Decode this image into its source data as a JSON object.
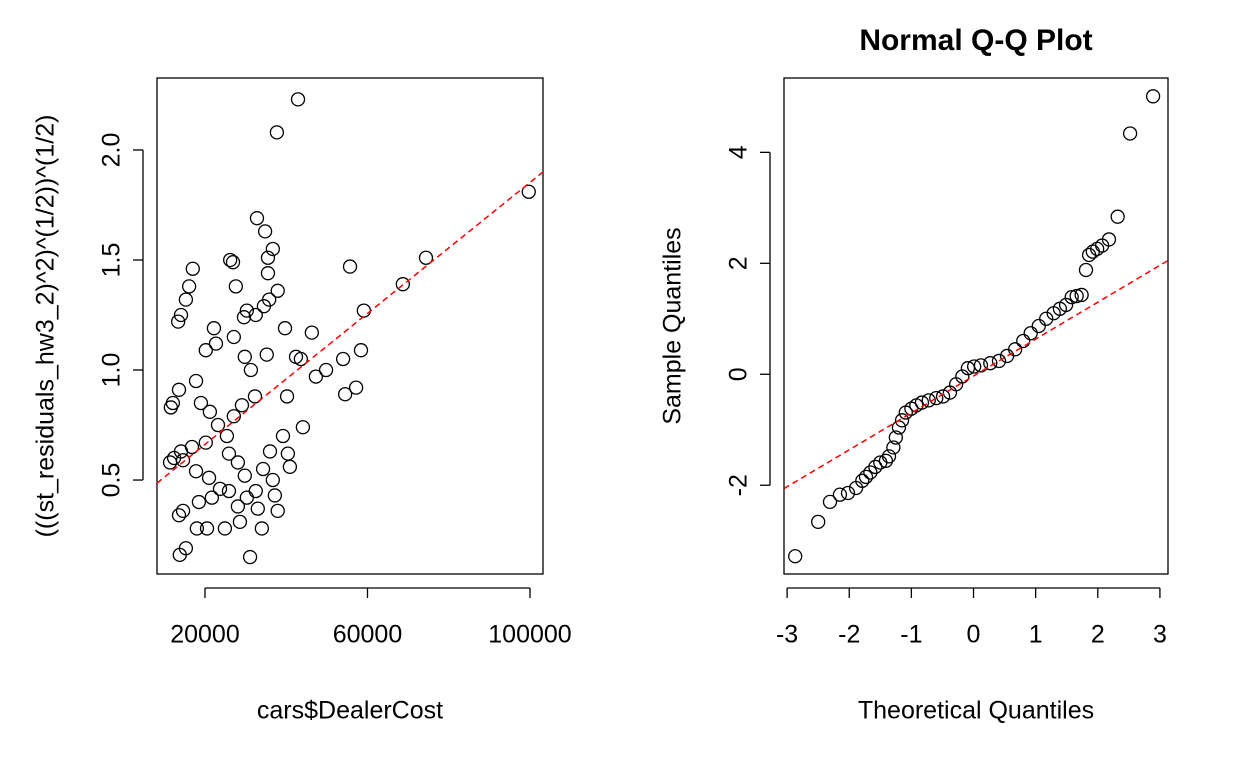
{
  "chart_data": [
    {
      "type": "scatter",
      "x_label": "cars$DealerCost",
      "y_label": "(((st_residuals_hw3_2)^2)^(1/2))^(1/2)",
      "xlim": [
        8190,
        103200
      ],
      "ylim": [
        0.073,
        2.327
      ],
      "xticks": [
        20000,
        60000,
        100000
      ],
      "yticks": [
        0.5,
        {
          "value": 1.0,
          "label": "1.0"
        },
        1.5,
        {
          "value": 2.0,
          "label": "2.0"
        }
      ],
      "point_color": "#000000",
      "reference_line": {
        "color": "#ff0000",
        "x": [
          8190,
          103200
        ],
        "y": [
          0.486,
          1.9
        ]
      },
      "x": [
        42900,
        37700,
        99700,
        74400,
        68700,
        55700,
        59100,
        58400,
        57200,
        54500,
        54000,
        49800,
        47300,
        46300,
        43600,
        42400,
        40200,
        39700,
        44100,
        40900,
        40400,
        39200,
        37900,
        36700,
        34800,
        32800,
        35500,
        35500,
        35800,
        34500,
        32500,
        30300,
        29600,
        26900,
        26200,
        27600,
        27100,
        29800,
        31300,
        35200,
        32300,
        29100,
        27100,
        25400,
        22200,
        22700,
        20200,
        17000,
        16100,
        15300,
        14100,
        13400,
        13600,
        12100,
        11600,
        17800,
        19000,
        21200,
        23200,
        20200,
        16800,
        14100,
        12400,
        11400,
        14600,
        17800,
        21000,
        23700,
        25900,
        21700,
        18500,
        14600,
        13600,
        18000,
        15300,
        13800,
        20500,
        24900,
        28100,
        30300,
        32500,
        34300,
        36000,
        37200,
        37900,
        34000,
        31100,
        28600,
        36700,
        29800,
        28100,
        25900,
        33000
      ],
      "values": [
        2.23,
        2.08,
        1.81,
        1.51,
        1.39,
        1.47,
        1.27,
        1.09,
        0.92,
        0.89,
        1.05,
        1.0,
        0.97,
        1.17,
        1.05,
        1.06,
        0.88,
        1.19,
        0.74,
        0.56,
        0.62,
        0.7,
        1.36,
        1.55,
        1.63,
        1.69,
        1.51,
        1.44,
        1.32,
        1.29,
        1.25,
        1.27,
        1.24,
        1.49,
        1.5,
        1.38,
        1.15,
        1.06,
        1.0,
        1.07,
        0.88,
        0.84,
        0.79,
        0.7,
        1.19,
        1.12,
        1.09,
        1.46,
        1.38,
        1.32,
        1.25,
        1.22,
        0.91,
        0.85,
        0.83,
        0.95,
        0.85,
        0.81,
        0.75,
        0.67,
        0.65,
        0.63,
        0.6,
        0.58,
        0.59,
        0.54,
        0.51,
        0.46,
        0.45,
        0.42,
        0.4,
        0.36,
        0.34,
        0.28,
        0.19,
        0.16,
        0.28,
        0.28,
        0.38,
        0.42,
        0.45,
        0.55,
        0.63,
        0.43,
        0.36,
        0.28,
        0.15,
        0.31,
        0.5,
        0.52,
        0.58,
        0.62,
        0.37
      ]
    },
    {
      "type": "scatter",
      "title": "Normal Q-Q Plot",
      "x_label": "Theoretical Quantiles",
      "y_label": "Sample Quantiles",
      "xlim": [
        -3.05,
        3.13
      ],
      "ylim": [
        -3.6,
        5.34
      ],
      "xticks": [
        -3,
        -2,
        -1,
        0,
        1,
        2,
        3
      ],
      "yticks": [
        -2,
        0,
        2,
        4
      ],
      "point_color": "#000000",
      "reference_line": {
        "color": "#ff0000",
        "x": [
          -3.05,
          3.13
        ],
        "y": [
          -2.06,
          2.05
        ]
      },
      "x": [
        -2.87,
        -2.5,
        -2.31,
        -2.15,
        -2.02,
        -1.89,
        -1.79,
        -1.73,
        -1.66,
        -1.58,
        -1.5,
        -1.41,
        -1.36,
        -1.29,
        -1.25,
        -1.2,
        -1.15,
        -1.09,
        -1.0,
        -0.92,
        -0.83,
        -0.72,
        -0.6,
        -0.49,
        -0.38,
        -0.28,
        -0.18,
        -0.09,
        0.01,
        0.12,
        0.27,
        0.41,
        0.54,
        0.67,
        0.8,
        0.92,
        1.05,
        1.17,
        1.29,
        1.39,
        1.49,
        1.58,
        1.66,
        1.74,
        1.81,
        1.86,
        1.92,
        1.99,
        2.07,
        2.18,
        2.32,
        2.52,
        2.89
      ],
      "values": [
        -3.28,
        -2.66,
        -2.3,
        -2.17,
        -2.14,
        -2.05,
        -1.92,
        -1.85,
        -1.77,
        -1.67,
        -1.59,
        -1.56,
        -1.48,
        -1.32,
        -1.14,
        -0.96,
        -0.83,
        -0.69,
        -0.62,
        -0.56,
        -0.51,
        -0.47,
        -0.43,
        -0.4,
        -0.33,
        -0.18,
        -0.04,
        0.11,
        0.14,
        0.16,
        0.2,
        0.24,
        0.33,
        0.45,
        0.6,
        0.74,
        0.87,
        1.0,
        1.1,
        1.18,
        1.25,
        1.39,
        1.41,
        1.43,
        1.88,
        2.15,
        2.21,
        2.26,
        2.32,
        2.43,
        2.84,
        4.34,
        5.01
      ]
    }
  ]
}
